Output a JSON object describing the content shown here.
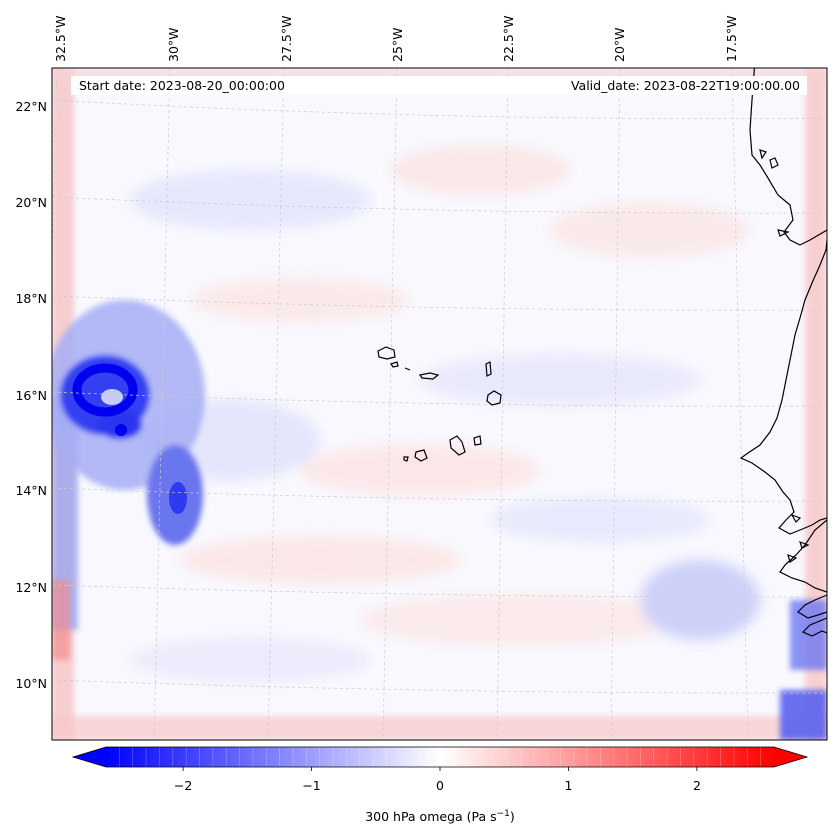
{
  "map": {
    "start_date": "Start date: 2023-08-20_00:00:00",
    "valid_date": "Valid_date: 2023-08-22T19:00:00.00",
    "lon_labels": [
      "32.5°W",
      "30°W",
      "27.5°W",
      "25°W",
      "22.5°W",
      "20°W",
      "17.5°W"
    ],
    "lat_labels": [
      "22°N",
      "20°N",
      "18°N",
      "16°N",
      "14°N",
      "12°N",
      "10°N"
    ],
    "gridlines": true,
    "features": [
      "cape-verde-islands",
      "west-africa-coastline"
    ],
    "field": "omega-300hPa"
  },
  "colorbar": {
    "ticks": [
      "−2",
      "−1",
      "0",
      "1",
      "2"
    ],
    "tick_values": [
      -2,
      -1,
      0,
      1,
      2
    ],
    "range": [
      -2.6,
      2.6
    ],
    "extend": "both",
    "label_main": "300 hPa omega (Pa s",
    "label_sup": "−1",
    "label_end": ")",
    "colormap": "bwr",
    "colors": {
      "low": "#0000ff",
      "mid": "#ffffff",
      "high": "#ff0000"
    }
  }
}
